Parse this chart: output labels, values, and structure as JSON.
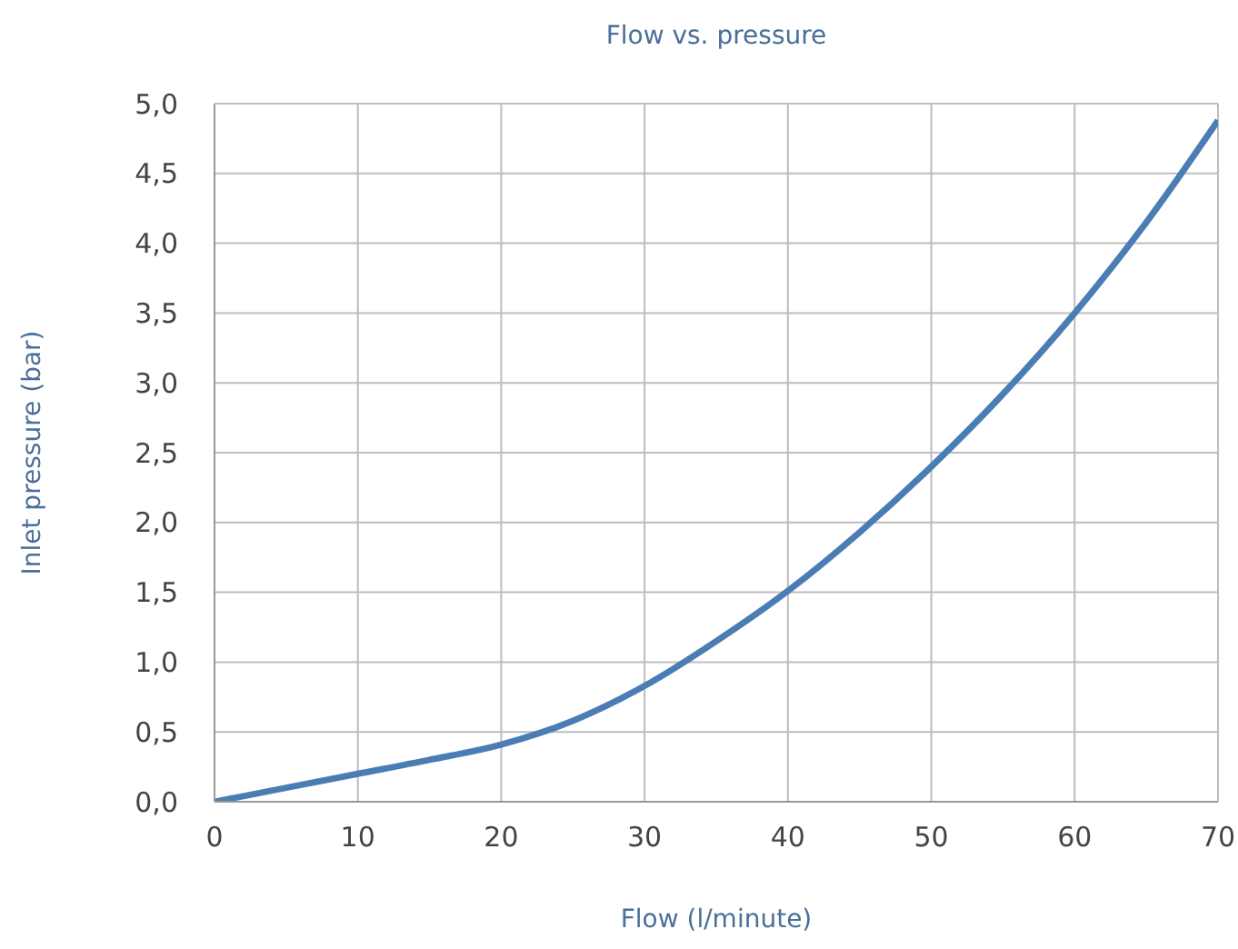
{
  "chart_data": {
    "type": "line",
    "title": "Flow vs. pressure",
    "xlabel": "Flow (l/minute)",
    "ylabel": "Inlet pressure (bar)",
    "x": [
      0,
      5,
      10,
      15,
      20,
      25,
      30,
      35,
      40,
      45,
      50,
      55,
      60,
      65,
      70
    ],
    "series": [
      {
        "color": "#4a7db3",
        "values": [
          0,
          0.1,
          0.2,
          0.3,
          0.41,
          0.58,
          0.83,
          1.15,
          1.51,
          1.93,
          2.4,
          2.92,
          3.5,
          4.15,
          4.88
        ]
      }
    ],
    "xlim": [
      0,
      70
    ],
    "xticks": [
      0,
      10,
      20,
      30,
      40,
      50,
      60,
      70
    ],
    "ylim": [
      0,
      5
    ],
    "yticks": [
      {
        "value": 0,
        "label": "0,0"
      },
      {
        "value": 0.5,
        "label": "0,5"
      },
      {
        "value": 1,
        "label": "1,0"
      },
      {
        "value": 1.5,
        "label": "1,5"
      },
      {
        "value": 2,
        "label": "2,0"
      },
      {
        "value": 2.5,
        "label": "2,5"
      },
      {
        "value": 3,
        "label": "3,0"
      },
      {
        "value": 3.5,
        "label": "3,5"
      },
      {
        "value": 4,
        "label": "4,0"
      },
      {
        "value": 4.5,
        "label": "4,5"
      },
      {
        "value": 5,
        "label": "5,0"
      }
    ],
    "grid": true,
    "marker": "none",
    "line_style": "solid",
    "legend": false
  }
}
